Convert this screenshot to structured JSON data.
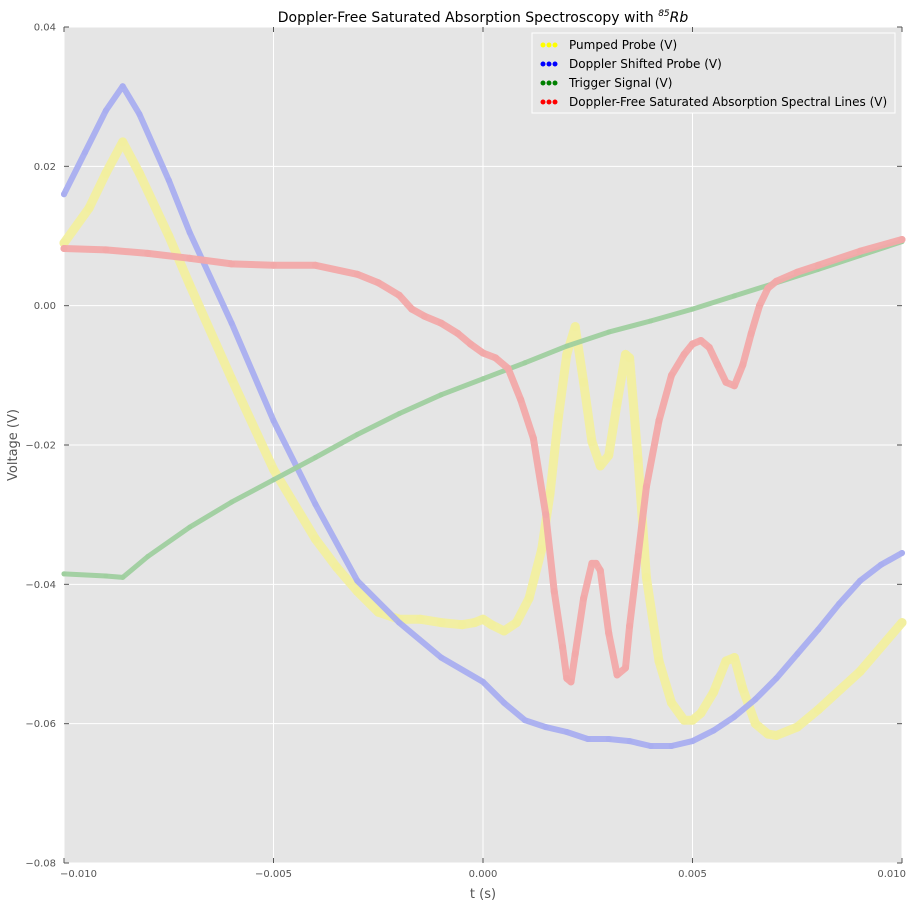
{
  "chart_data": {
    "type": "scatter",
    "title": "Doppler-Free Saturated Absorption Spectroscopy with ",
    "title_superscript": "85",
    "title_symbol": "Rb",
    "xlabel": "t (s)",
    "ylabel": "Voltage (V)",
    "xlim": [
      -0.01,
      0.01
    ],
    "ylim": [
      -0.08,
      0.04
    ],
    "xticks": [
      -0.01,
      -0.005,
      0.0,
      0.005,
      0.01
    ],
    "xtick_labels": [
      "−0.010",
      "−0.005",
      "0.000",
      "0.005",
      "0.010"
    ],
    "yticks": [
      -0.08,
      -0.06,
      -0.04,
      -0.02,
      0.0,
      0.02,
      0.04
    ],
    "ytick_labels": [
      "−0.08",
      "−0.06",
      "−0.04",
      "−0.02",
      "0.00",
      "0.02",
      "0.04"
    ],
    "grid": true,
    "legend_position": "top-right",
    "series": [
      {
        "name": "Pumped Probe (V)",
        "color": "#f2ef9f",
        "legend_color": "#ffff00",
        "x": [
          -0.01,
          -0.0094,
          -0.009,
          -0.0086,
          -0.0082,
          -0.0075,
          -0.007,
          -0.006,
          -0.005,
          -0.004,
          -0.0035,
          -0.003,
          -0.0025,
          -0.002,
          -0.0015,
          -0.001,
          -0.0005,
          -0.0002,
          0.0,
          0.0002,
          0.0005,
          0.0008,
          0.0011,
          0.0014,
          0.0016,
          0.0018,
          0.002,
          0.0022,
          0.0024,
          0.0026,
          0.0028,
          0.003,
          0.0032,
          0.0034,
          0.0035,
          0.0037,
          0.0039,
          0.0042,
          0.0045,
          0.0048,
          0.005,
          0.0052,
          0.0055,
          0.0058,
          0.006,
          0.0062,
          0.0065,
          0.0068,
          0.007,
          0.0075,
          0.008,
          0.009,
          0.01
        ],
        "y": [
          0.009,
          0.014,
          0.019,
          0.0235,
          0.019,
          0.01,
          0.003,
          -0.0105,
          -0.0235,
          -0.0335,
          -0.0375,
          -0.041,
          -0.044,
          -0.045,
          -0.045,
          -0.0455,
          -0.0458,
          -0.0455,
          -0.045,
          -0.0458,
          -0.0467,
          -0.0455,
          -0.042,
          -0.035,
          -0.027,
          -0.016,
          -0.007,
          -0.003,
          -0.011,
          -0.0195,
          -0.023,
          -0.0215,
          -0.014,
          -0.007,
          -0.0075,
          -0.022,
          -0.039,
          -0.051,
          -0.057,
          -0.0595,
          -0.0595,
          -0.0585,
          -0.0555,
          -0.051,
          -0.0505,
          -0.055,
          -0.06,
          -0.0615,
          -0.0617,
          -0.0605,
          -0.058,
          -0.0525,
          -0.0455
        ]
      },
      {
        "name": "Doppler Shifted Probe (V)",
        "color": "#a9aef0",
        "legend_color": "#0000ff",
        "x": [
          -0.01,
          -0.0095,
          -0.009,
          -0.0086,
          -0.0082,
          -0.0075,
          -0.007,
          -0.006,
          -0.005,
          -0.004,
          -0.003,
          -0.002,
          -0.001,
          0.0,
          0.0005,
          0.001,
          0.0015,
          0.002,
          0.0025,
          0.003,
          0.0035,
          0.004,
          0.0045,
          0.005,
          0.0055,
          0.006,
          0.0065,
          0.007,
          0.0075,
          0.008,
          0.0085,
          0.009,
          0.0095,
          0.01
        ],
        "y": [
          0.016,
          0.022,
          0.028,
          0.0315,
          0.0275,
          0.018,
          0.0105,
          -0.0025,
          -0.0165,
          -0.0285,
          -0.0395,
          -0.0455,
          -0.0505,
          -0.054,
          -0.057,
          -0.0595,
          -0.0605,
          -0.0612,
          -0.0622,
          -0.0622,
          -0.0625,
          -0.0632,
          -0.0632,
          -0.0625,
          -0.061,
          -0.059,
          -0.0565,
          -0.0535,
          -0.05,
          -0.0465,
          -0.0428,
          -0.0395,
          -0.0372,
          -0.0355
        ]
      },
      {
        "name": "Trigger Signal (V)",
        "color": "#9fcf9f",
        "legend_color": "#008000",
        "x": [
          -0.01,
          -0.009,
          -0.0086,
          -0.008,
          -0.007,
          -0.006,
          -0.005,
          -0.004,
          -0.003,
          -0.002,
          -0.001,
          0.0,
          0.001,
          0.002,
          0.003,
          0.004,
          0.005,
          0.006,
          0.007,
          0.008,
          0.009,
          0.01
        ],
        "y": [
          -0.0385,
          -0.0388,
          -0.039,
          -0.036,
          -0.0318,
          -0.0282,
          -0.025,
          -0.0218,
          -0.0185,
          -0.0155,
          -0.0128,
          -0.0105,
          -0.0082,
          -0.0058,
          -0.0038,
          -0.0022,
          -0.0005,
          0.0014,
          0.0033,
          0.0052,
          0.0072,
          0.0092
        ]
      },
      {
        "name": "Doppler-Free Saturated Absorption Spectral Lines (V)",
        "color": "#f2a9a9",
        "legend_color": "#ff0000",
        "x": [
          -0.01,
          -0.009,
          -0.008,
          -0.007,
          -0.006,
          -0.005,
          -0.004,
          -0.003,
          -0.0025,
          -0.002,
          -0.0017,
          -0.0014,
          -0.001,
          -0.0006,
          -0.0003,
          0.0,
          0.0003,
          0.0006,
          0.0009,
          0.0012,
          0.0015,
          0.0017,
          0.0019,
          0.002,
          0.0021,
          0.0022,
          0.0024,
          0.0026,
          0.0027,
          0.0028,
          0.003,
          0.0032,
          0.0034,
          0.0035,
          0.0037,
          0.0039,
          0.0042,
          0.0045,
          0.0048,
          0.005,
          0.0052,
          0.0054,
          0.0056,
          0.0058,
          0.006,
          0.0062,
          0.0064,
          0.0066,
          0.0068,
          0.007,
          0.0075,
          0.008,
          0.009,
          0.01
        ],
        "y": [
          0.0082,
          0.008,
          0.0075,
          0.0068,
          0.006,
          0.0058,
          0.0058,
          0.0045,
          0.0033,
          0.0015,
          -0.0005,
          -0.0015,
          -0.0025,
          -0.004,
          -0.0055,
          -0.0068,
          -0.0075,
          -0.009,
          -0.0135,
          -0.019,
          -0.03,
          -0.041,
          -0.049,
          -0.0535,
          -0.054,
          -0.05,
          -0.042,
          -0.037,
          -0.037,
          -0.038,
          -0.047,
          -0.053,
          -0.052,
          -0.046,
          -0.036,
          -0.026,
          -0.0165,
          -0.01,
          -0.007,
          -0.0055,
          -0.005,
          -0.006,
          -0.0085,
          -0.011,
          -0.0115,
          -0.0085,
          -0.004,
          0.0,
          0.0025,
          0.0035,
          0.0048,
          0.0058,
          0.0078,
          0.0095
        ]
      }
    ]
  }
}
